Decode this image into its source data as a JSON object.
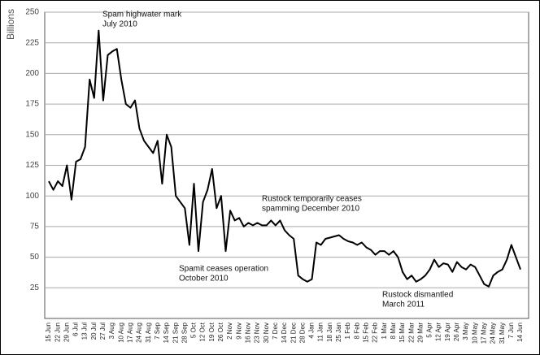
{
  "chart_data": {
    "type": "line",
    "y_label": "Billions",
    "categories": [
      "15 Jun",
      null,
      "22 Jun",
      null,
      "29 Jun",
      null,
      "6 Jul",
      null,
      "13 Jul",
      null,
      "20 Jul",
      null,
      "27 Jul",
      null,
      "3 Aug",
      null,
      "10 Aug",
      null,
      "17 Aug",
      null,
      "24 Aug",
      null,
      "31 Aug",
      null,
      "7 Sep",
      null,
      "14 Sep",
      null,
      "21 Sep",
      null,
      "28 Sep",
      null,
      "5 Oct",
      null,
      "12 Oct",
      null,
      "19 Oct",
      null,
      "26 Oct",
      null,
      "2 Nov",
      null,
      "9 Nov",
      null,
      "16 Nov",
      null,
      "23 Nov",
      null,
      "30 Nov",
      null,
      "7 Dec",
      null,
      "14 Dec",
      null,
      "21 Dec",
      null,
      "28 Dec",
      null,
      "4 Jan",
      null,
      "11 Jan",
      null,
      "18 Jan",
      null,
      "25 Jan",
      null,
      "1 Feb",
      null,
      "8 Feb",
      null,
      "15 Feb",
      null,
      "22 Feb",
      null,
      "1 Mar",
      null,
      "8 Mar",
      null,
      "15 Mar",
      null,
      "22 Mar",
      null,
      "29 Mar",
      null,
      "5 Apr",
      null,
      "12 Apr",
      null,
      "19 Apr",
      null,
      "26 Apr",
      null,
      "3 May",
      null,
      "10 May",
      null,
      "17 May",
      null,
      "24 May",
      null,
      "31 May",
      null,
      "7 Jun",
      null,
      "14 Jun"
    ],
    "values": [
      112,
      105,
      112,
      108,
      125,
      97,
      128,
      130,
      140,
      195,
      180,
      235,
      178,
      215,
      218,
      220,
      195,
      175,
      172,
      178,
      155,
      145,
      140,
      135,
      145,
      110,
      150,
      140,
      100,
      95,
      90,
      60,
      110,
      55,
      95,
      105,
      122,
      90,
      100,
      55,
      88,
      80,
      82,
      75,
      78,
      76,
      78,
      76,
      76,
      80,
      76,
      80,
      72,
      68,
      65,
      35,
      32,
      30,
      32,
      62,
      60,
      65,
      66,
      67,
      68,
      65,
      63,
      62,
      60,
      62,
      58,
      56,
      52,
      55,
      55,
      52,
      55,
      50,
      38,
      32,
      35,
      30,
      32,
      35,
      40,
      48,
      42,
      45,
      44,
      38,
      46,
      42,
      40,
      44,
      42,
      35,
      28,
      26,
      35,
      38,
      40,
      48,
      60,
      50,
      40
    ],
    "color": "#000000",
    "ylim": [
      0,
      250
    ],
    "yticks": [
      25,
      50,
      75,
      100,
      125,
      150,
      175,
      200,
      225,
      250
    ],
    "grid": true,
    "annotations": [
      [
        "Spam highwater mark",
        "July 2010"
      ],
      [
        "Rustock temporarily ceases",
        "spamming December 2010"
      ],
      [
        "Spamit ceases operation",
        "October 2010"
      ],
      [
        "Rustock dismantled",
        "March 2011"
      ]
    ]
  }
}
